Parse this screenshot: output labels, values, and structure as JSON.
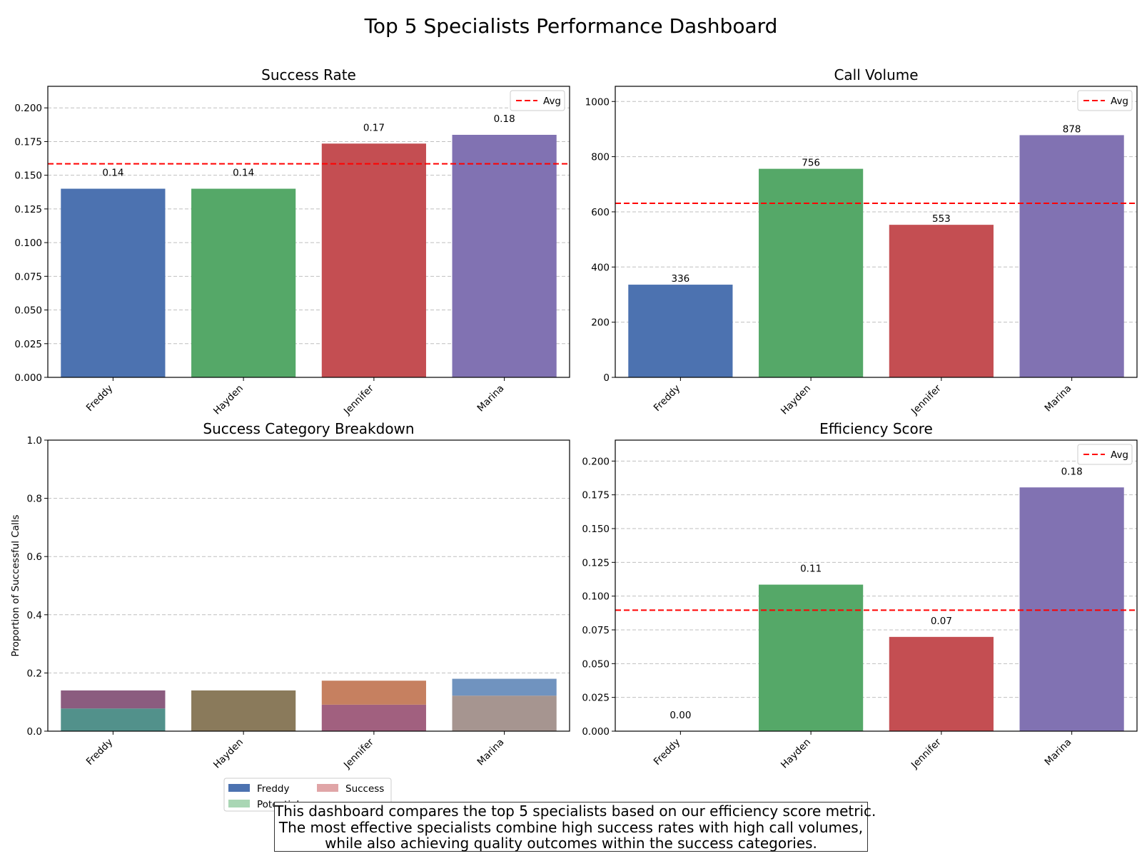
{
  "title": "Top 5 Specialists Performance Dashboard",
  "caption": [
    "This dashboard compares the top 5 specialists based on our efficiency score metric.",
    "The most effective specialists combine high success rates with high call volumes,",
    "while also achieving quality outcomes within the success categories."
  ],
  "colors": {
    "Freddy": "#4c72b0",
    "Hayden": "#55a868",
    "Jennifer": "#c44e52",
    "Marina": "#8172b2",
    "avg_line": "#ff0000"
  },
  "chart_data": [
    {
      "id": "success-rate",
      "type": "bar",
      "title": "Success Rate",
      "categories": [
        "Freddy",
        "Hayden",
        "Jennifer",
        "Marina"
      ],
      "values": [
        0.14,
        0.14,
        0.1735,
        0.18
      ],
      "data_labels": [
        "0.14",
        "0.14",
        "0.17",
        "0.18"
      ],
      "avg": 0.1585,
      "legend": {
        "label": "Avg",
        "position": "top-right"
      },
      "ylim": [
        0,
        0.216
      ],
      "yticks": [
        0,
        0.025,
        0.05,
        0.075,
        0.1,
        0.125,
        0.15,
        0.175,
        0.2
      ],
      "ytick_labels": [
        "0.000",
        "0.025",
        "0.050",
        "0.075",
        "0.100",
        "0.125",
        "0.150",
        "0.175",
        "0.200"
      ],
      "grid": true
    },
    {
      "id": "call-volume",
      "type": "bar",
      "title": "Call Volume",
      "categories": [
        "Freddy",
        "Hayden",
        "Jennifer",
        "Marina"
      ],
      "values": [
        336,
        756,
        553,
        878
      ],
      "data_labels": [
        "336",
        "756",
        "553",
        "878"
      ],
      "avg": 631,
      "legend": {
        "label": "Avg",
        "position": "top-right"
      },
      "ylim": [
        0,
        1055
      ],
      "yticks": [
        0,
        200,
        400,
        600,
        800,
        1000
      ],
      "ytick_labels": [
        "0",
        "200",
        "400",
        "600",
        "800",
        "1000"
      ],
      "grid": true
    },
    {
      "id": "category-breakdown",
      "type": "bar",
      "stacked": true,
      "title": "Success Category Breakdown",
      "ylabel": "Proportion of Successful Calls",
      "categories": [
        "Freddy",
        "Hayden",
        "Jennifer",
        "Marina"
      ],
      "segments": [
        [
          {
            "value": 0.078,
            "color": "#52918b"
          },
          {
            "value": 0.062,
            "color": "#8b5c7f"
          }
        ],
        [
          {
            "value": 0.14,
            "color": "#8a7a5b"
          }
        ],
        [
          {
            "value": 0.091,
            "color": "#a1607f"
          },
          {
            "value": 0.0825,
            "color": "#c68060"
          }
        ],
        [
          {
            "value": 0.122,
            "color": "#a69590"
          },
          {
            "value": 0.058,
            "color": "#7093bf"
          }
        ]
      ],
      "legend": {
        "position": "bottom-center",
        "entries": [
          {
            "label": "Freddy",
            "color": "#4c72b0"
          },
          {
            "label": "Potential",
            "color": "#a9d6b4"
          },
          {
            "label": "Success",
            "color": "#e0a5a7"
          }
        ]
      },
      "ylim": [
        0,
        1.0
      ],
      "yticks": [
        0,
        0.2,
        0.4,
        0.6,
        0.8,
        1.0
      ],
      "ytick_labels": [
        "0.0",
        "0.2",
        "0.4",
        "0.6",
        "0.8",
        "1.0"
      ],
      "grid": true
    },
    {
      "id": "efficiency-score",
      "type": "bar",
      "title": "Efficiency Score",
      "categories": [
        "Freddy",
        "Hayden",
        "Jennifer",
        "Marina"
      ],
      "values": [
        0.0,
        0.1085,
        0.0698,
        0.1805
      ],
      "data_labels": [
        "0.00",
        "0.11",
        "0.07",
        "0.18"
      ],
      "avg": 0.0896,
      "legend": {
        "label": "Avg",
        "position": "top-right"
      },
      "ylim": [
        0,
        0.2155
      ],
      "yticks": [
        0,
        0.025,
        0.05,
        0.075,
        0.1,
        0.125,
        0.15,
        0.175,
        0.2
      ],
      "ytick_labels": [
        "0.000",
        "0.025",
        "0.050",
        "0.075",
        "0.100",
        "0.125",
        "0.150",
        "0.175",
        "0.200"
      ],
      "grid": true
    }
  ]
}
